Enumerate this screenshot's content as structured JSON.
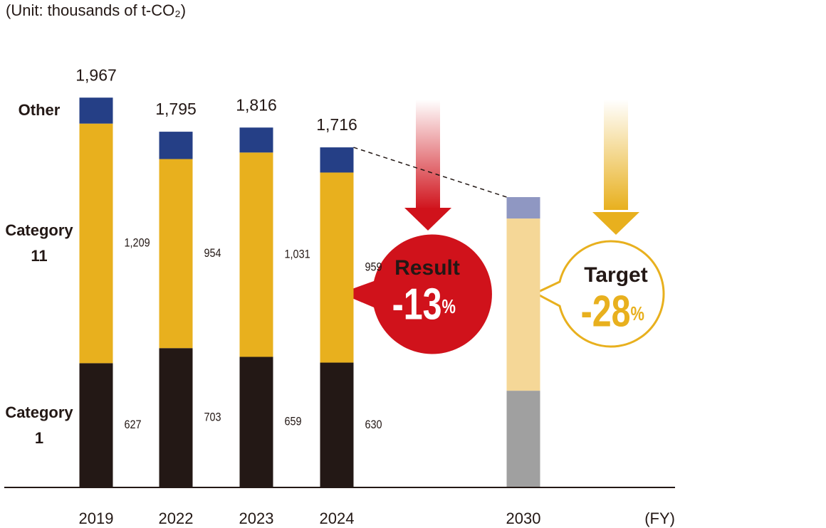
{
  "chart_data": {
    "type": "bar",
    "stacked": true,
    "subtitle": "(Unit: thousands of t-CO₂)",
    "x_label": "(FY)",
    "categories": [
      "2019",
      "2022",
      "2023",
      "2024",
      "2030"
    ],
    "series": [
      {
        "name": "Category 1",
        "color": "#231815",
        "colors": [
          "#231815",
          "#231815",
          "#231815",
          "#231815",
          "#a0a0a0"
        ],
        "values": [
          627,
          703,
          659,
          630,
          488
        ],
        "value_labels": [
          "627",
          "703",
          "659",
          "630",
          null
        ]
      },
      {
        "name": "Category 11",
        "color": "#e8b01e",
        "colors": [
          "#e8b01e",
          "#e8b01e",
          "#e8b01e",
          "#e8b01e",
          "#f5d797"
        ],
        "values": [
          1209,
          954,
          1031,
          959,
          869
        ],
        "value_labels": [
          "1,209",
          "954",
          "1,031",
          "959",
          null
        ]
      },
      {
        "name": "Other",
        "color": "#253f86",
        "colors": [
          "#253f86",
          "#253f86",
          "#253f86",
          "#253f86",
          "#8f97c2"
        ],
        "values": [
          131,
          138,
          126,
          127,
          108
        ]
      }
    ],
    "totals": {
      "values": [
        1967,
        1795,
        1816,
        1716,
        null
      ],
      "value_labels": [
        "1,967",
        "1,795",
        "1,816",
        "1,716",
        null
      ]
    },
    "ylim": [
      0,
      2000
    ],
    "annotations": [
      {
        "label": "Result",
        "value": -13,
        "unit": "%",
        "color": "#d0121b"
      },
      {
        "label": "Target",
        "value": -28,
        "unit": "%",
        "color": "#e8b01e"
      }
    ]
  }
}
